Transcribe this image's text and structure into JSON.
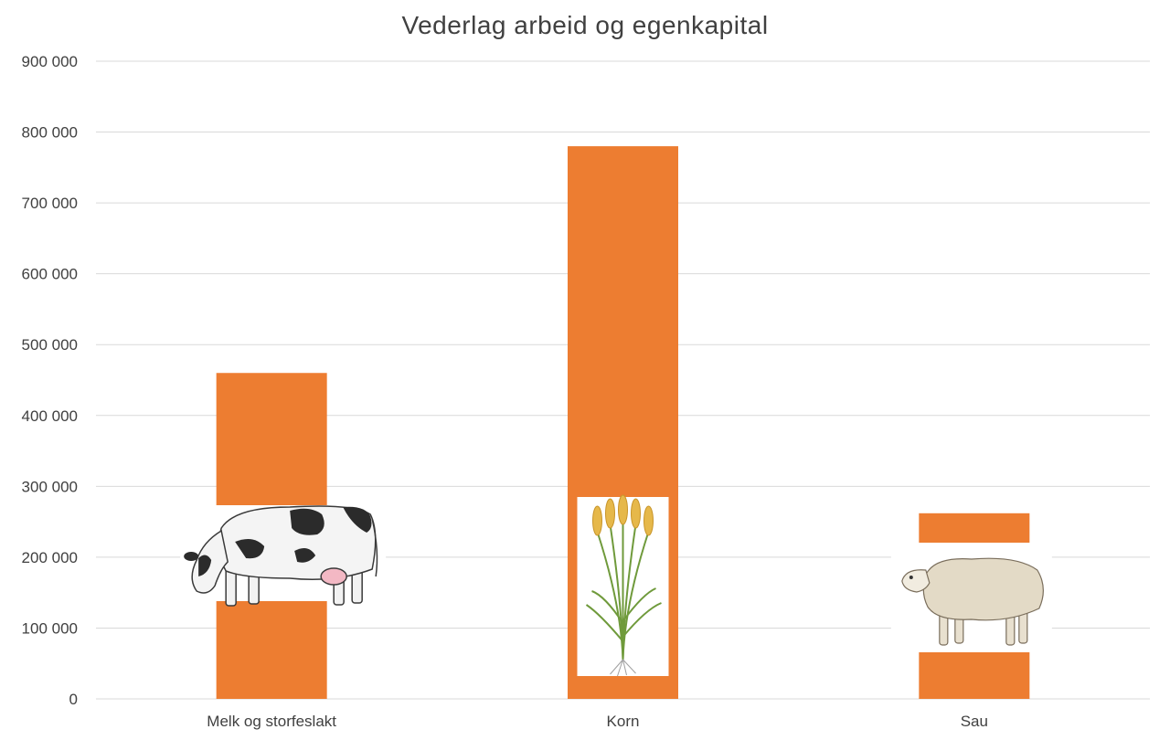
{
  "chart_data": {
    "type": "bar",
    "title": "Vederlag arbeid og egenkapital",
    "xlabel": "",
    "ylabel": "",
    "categories": [
      "Melk og storfeslakt",
      "Korn",
      "Sau"
    ],
    "values": [
      460000,
      780000,
      262000
    ],
    "ylim": [
      0,
      900000
    ],
    "yticks": [
      0,
      100000,
      200000,
      300000,
      400000,
      500000,
      600000,
      700000,
      800000,
      900000
    ],
    "ytick_labels": [
      "0",
      "100 000",
      "200 000",
      "300 000",
      "400 000",
      "500 000",
      "600 000",
      "700 000",
      "800 000",
      "900 000"
    ],
    "grid": true,
    "legend": "none",
    "bar_color": "#ED7D31",
    "bar_icons": [
      "cow-icon",
      "wheat-icon",
      "sheep-icon"
    ]
  }
}
